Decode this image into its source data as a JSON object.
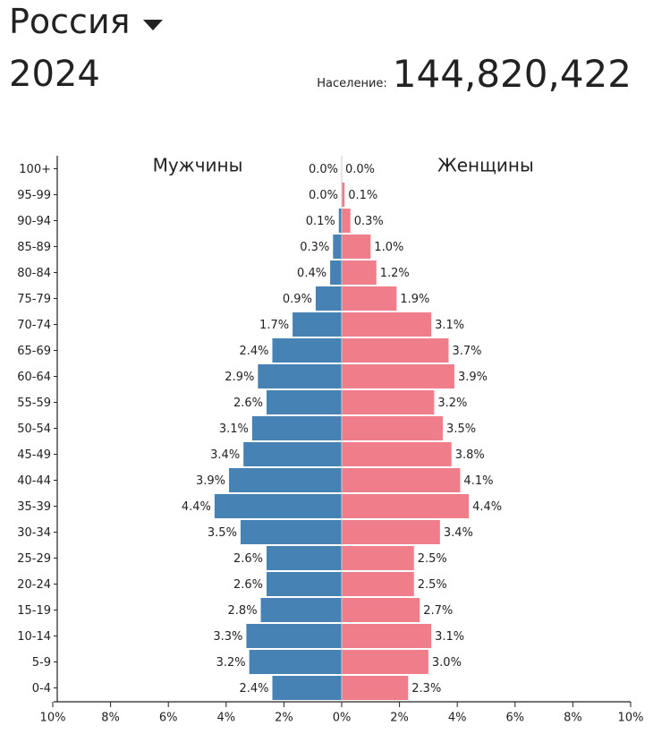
{
  "header": {
    "country": "Россия",
    "year": "2024",
    "population_label": "Население:",
    "population_value": "144,820,422"
  },
  "colors": {
    "male": "#4682b4",
    "female": "#f07d8a"
  },
  "icons": {
    "country_dropdown": "caret-down-icon"
  },
  "chart_data": {
    "type": "bar",
    "subtype": "population-pyramid",
    "orientation": "horizontal",
    "categories": [
      "100+",
      "95-99",
      "90-94",
      "85-89",
      "80-84",
      "75-79",
      "70-74",
      "65-69",
      "60-64",
      "55-59",
      "50-54",
      "45-49",
      "40-44",
      "35-39",
      "30-34",
      "25-29",
      "20-24",
      "15-19",
      "10-14",
      "5-9",
      "0-4"
    ],
    "series": [
      {
        "name": "Мужчины",
        "values": [
          0.0,
          0.0,
          0.1,
          0.3,
          0.4,
          0.9,
          1.7,
          2.4,
          2.9,
          2.6,
          3.1,
          3.4,
          3.9,
          4.4,
          3.5,
          2.6,
          2.6,
          2.8,
          3.3,
          3.2,
          2.4
        ]
      },
      {
        "name": "Женщины",
        "values": [
          0.0,
          0.1,
          0.3,
          1.0,
          1.2,
          1.9,
          3.1,
          3.7,
          3.9,
          3.2,
          3.5,
          3.8,
          4.1,
          4.4,
          3.4,
          2.5,
          2.5,
          2.7,
          3.1,
          3.0,
          2.3
        ]
      }
    ],
    "value_labels": {
      "male": [
        "0.0%",
        "0.0%",
        "0.1%",
        "0.3%",
        "0.4%",
        "0.9%",
        "1.7%",
        "2.4%",
        "2.9%",
        "2.6%",
        "3.1%",
        "3.4%",
        "3.9%",
        "4.4%",
        "3.5%",
        "2.6%",
        "2.6%",
        "2.8%",
        "3.3%",
        "3.2%",
        "2.4%"
      ],
      "female": [
        "0.0%",
        "0.1%",
        "0.3%",
        "1.0%",
        "1.2%",
        "1.9%",
        "3.1%",
        "3.7%",
        "3.9%",
        "3.2%",
        "3.5%",
        "3.8%",
        "4.1%",
        "4.4%",
        "3.4%",
        "2.5%",
        "2.5%",
        "2.7%",
        "3.1%",
        "3.0%",
        "2.3%"
      ]
    },
    "xticks": [
      "10%",
      "8%",
      "6%",
      "4%",
      "2%",
      "0%",
      "2%",
      "4%",
      "6%",
      "8%",
      "10%"
    ],
    "xlim": [
      -10,
      10
    ],
    "unit": "%",
    "grid": false,
    "legend": "top, inside plot, one label per side"
  }
}
